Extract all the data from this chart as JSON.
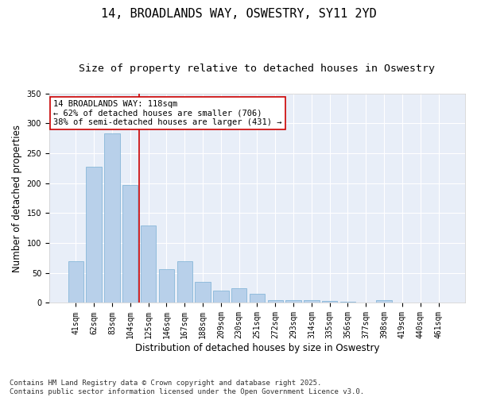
{
  "title": "14, BROADLANDS WAY, OSWESTRY, SY11 2YD",
  "subtitle": "Size of property relative to detached houses in Oswestry",
  "xlabel": "Distribution of detached houses by size in Oswestry",
  "ylabel": "Number of detached properties",
  "categories": [
    "41sqm",
    "62sqm",
    "83sqm",
    "104sqm",
    "125sqm",
    "146sqm",
    "167sqm",
    "188sqm",
    "209sqm",
    "230sqm",
    "251sqm",
    "272sqm",
    "293sqm",
    "314sqm",
    "335sqm",
    "356sqm",
    "377sqm",
    "398sqm",
    "419sqm",
    "440sqm",
    "461sqm"
  ],
  "values": [
    70,
    228,
    283,
    197,
    130,
    57,
    70,
    35,
    20,
    24,
    15,
    5,
    4,
    5,
    3,
    2,
    0,
    5,
    0,
    0,
    1
  ],
  "bar_color": "#b8d0ea",
  "bar_edge_color": "#7aafd4",
  "vline_x": 3.5,
  "vline_color": "#cc0000",
  "annotation_text": "14 BROADLANDS WAY: 118sqm\n← 62% of detached houses are smaller (706)\n38% of semi-detached houses are larger (431) →",
  "annotation_box_color": "#ffffff",
  "annotation_box_edge": "#cc0000",
  "ylim": [
    0,
    350
  ],
  "yticks": [
    0,
    50,
    100,
    150,
    200,
    250,
    300,
    350
  ],
  "footer": "Contains HM Land Registry data © Crown copyright and database right 2025.\nContains public sector information licensed under the Open Government Licence v3.0.",
  "fig_background": "#ffffff",
  "plot_background": "#e8eef8",
  "grid_color": "#ffffff",
  "title_fontsize": 11,
  "subtitle_fontsize": 9.5,
  "axis_label_fontsize": 8.5,
  "tick_fontsize": 7,
  "annotation_fontsize": 7.5,
  "footer_fontsize": 6.5
}
